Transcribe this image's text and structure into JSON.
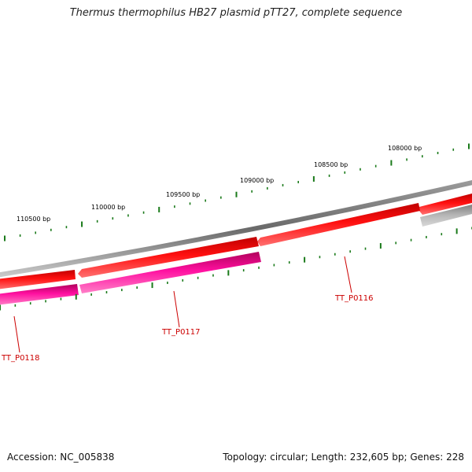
{
  "title": "Thermus thermophilus HB27 plasmid pTT27, complete sequence",
  "footer": {
    "accession": "Accession: NC_005838",
    "summary": "Topology: circular; Length: 232,605 bp; Genes: 228"
  },
  "colors": {
    "backbone": "#7a7a7a",
    "cds_forward": "#e8000a",
    "cds_reverse": "#e2007a",
    "other": "#a8a8a8",
    "tick": "#1a7a1a",
    "gene_label": "#cc0000"
  },
  "scale": {
    "unit": "bp",
    "labels": [
      {
        "pos": 108000,
        "text": "108000 bp"
      },
      {
        "pos": 108500,
        "text": "108500 bp"
      },
      {
        "pos": 109000,
        "text": "109000 bp"
      },
      {
        "pos": 109500,
        "text": "109500 bp"
      },
      {
        "pos": 110000,
        "text": "110000 bp"
      },
      {
        "pos": 110500,
        "text": "110500 bp"
      }
    ]
  },
  "genes": [
    {
      "id": "TT_P0116",
      "label": "TT_P0116"
    },
    {
      "id": "TT_P0117",
      "label": "TT_P0117"
    },
    {
      "id": "TT_P0118",
      "label": "TT_P0118"
    }
  ]
}
